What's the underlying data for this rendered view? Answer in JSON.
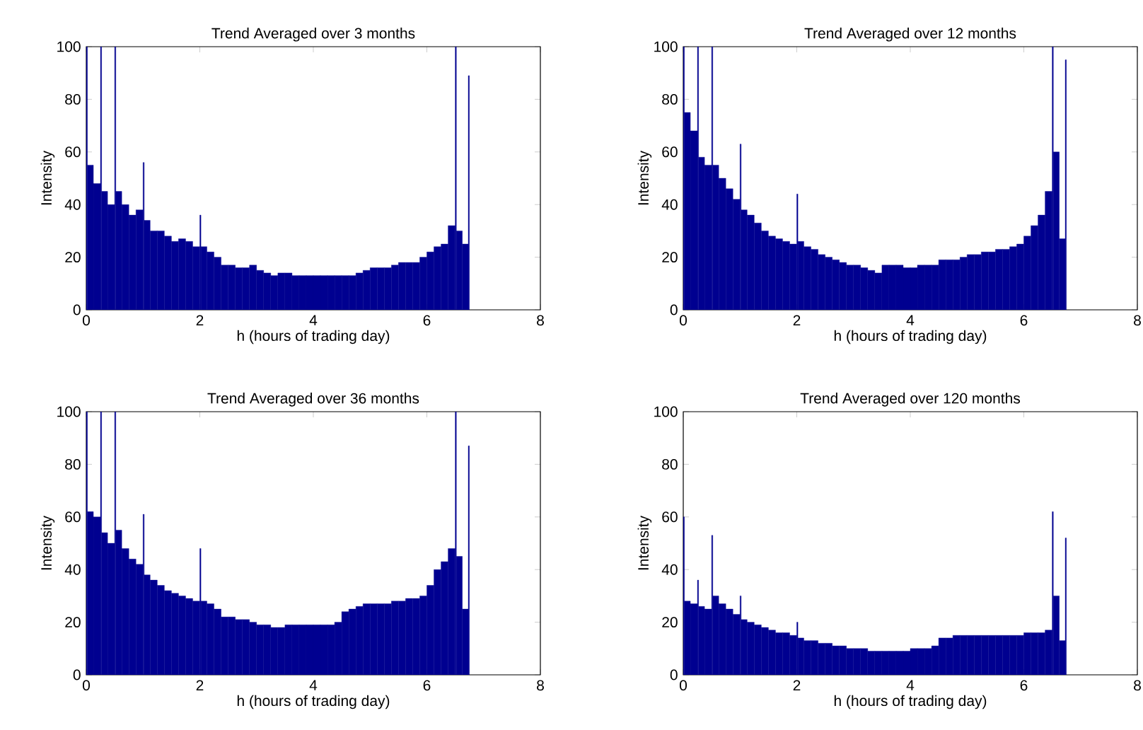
{
  "chart_data": [
    {
      "type": "histogram",
      "title": "Trend Averaged over 3 months",
      "xlabel": "h (hours of trading day)",
      "ylabel": "Intensity",
      "color": "#000090",
      "xlim": [
        0,
        8
      ],
      "ylim": [
        0,
        100
      ],
      "xticks": [
        0,
        2,
        4,
        6,
        8
      ],
      "yticks": [
        0,
        20,
        40,
        60,
        80,
        100
      ],
      "bins": [
        0,
        0.02,
        0.125,
        0.25,
        0.27,
        0.375,
        0.5,
        0.52,
        0.625,
        0.75,
        0.875,
        1,
        1.02,
        1.125,
        1.25,
        1.375,
        1.5,
        1.625,
        1.75,
        1.875,
        2,
        2.02,
        2.125,
        2.25,
        2.375,
        2.5,
        2.625,
        2.75,
        2.875,
        3,
        3.125,
        3.25,
        3.375,
        3.5,
        3.625,
        3.75,
        3.875,
        4,
        4.125,
        4.25,
        4.375,
        4.5,
        4.625,
        4.75,
        4.875,
        5,
        5.125,
        5.25,
        5.375,
        5.5,
        5.625,
        5.75,
        5.875,
        6,
        6.125,
        6.25,
        6.375,
        6.5,
        6.52,
        6.625,
        6.73,
        6.75
      ],
      "values": [
        100,
        55,
        48,
        100,
        45,
        40,
        100,
        45,
        40,
        36,
        38,
        56,
        34,
        30,
        30,
        28,
        26,
        27,
        26,
        24,
        36,
        24,
        22,
        20,
        17,
        17,
        16,
        16,
        17,
        15,
        14,
        13,
        14,
        14,
        13,
        13,
        13,
        13,
        13,
        13,
        13,
        13,
        13,
        14,
        15,
        16,
        16,
        16,
        17,
        18,
        18,
        18,
        20,
        22,
        24,
        25,
        32,
        100,
        30,
        25,
        89
      ]
    },
    {
      "type": "histogram",
      "title": "Trend Averaged over 12 months",
      "xlabel": "h (hours of trading day)",
      "ylabel": "Intensity",
      "color": "#000090",
      "xlim": [
        0,
        8
      ],
      "ylim": [
        0,
        100
      ],
      "xticks": [
        0,
        2,
        4,
        6,
        8
      ],
      "yticks": [
        0,
        20,
        40,
        60,
        80,
        100
      ],
      "bins": [
        0,
        0.02,
        0.125,
        0.25,
        0.27,
        0.375,
        0.5,
        0.52,
        0.625,
        0.75,
        0.875,
        1,
        1.02,
        1.125,
        1.25,
        1.375,
        1.5,
        1.625,
        1.75,
        1.875,
        2,
        2.02,
        2.125,
        2.25,
        2.375,
        2.5,
        2.625,
        2.75,
        2.875,
        3,
        3.125,
        3.25,
        3.375,
        3.5,
        3.625,
        3.75,
        3.875,
        4,
        4.125,
        4.25,
        4.375,
        4.5,
        4.625,
        4.75,
        4.875,
        5,
        5.125,
        5.25,
        5.375,
        5.5,
        5.625,
        5.75,
        5.875,
        6,
        6.125,
        6.25,
        6.375,
        6.5,
        6.52,
        6.625,
        6.73,
        6.75
      ],
      "values": [
        100,
        75,
        68,
        100,
        58,
        55,
        100,
        55,
        50,
        46,
        42,
        63,
        38,
        36,
        33,
        30,
        28,
        27,
        26,
        25,
        44,
        26,
        24,
        23,
        21,
        20,
        19,
        18,
        17,
        17,
        16,
        15,
        14,
        17,
        17,
        17,
        16,
        16,
        17,
        17,
        17,
        19,
        19,
        19,
        20,
        21,
        21,
        22,
        22,
        23,
        23,
        24,
        25,
        28,
        32,
        36,
        45,
        100,
        60,
        27,
        95
      ]
    },
    {
      "type": "histogram",
      "title": "Trend Averaged over 36 months",
      "xlabel": "h (hours of trading day)",
      "ylabel": "Intensity",
      "color": "#000090",
      "xlim": [
        0,
        8
      ],
      "ylim": [
        0,
        100
      ],
      "xticks": [
        0,
        2,
        4,
        6,
        8
      ],
      "yticks": [
        0,
        20,
        40,
        60,
        80,
        100
      ],
      "bins": [
        0,
        0.02,
        0.125,
        0.25,
        0.27,
        0.375,
        0.5,
        0.52,
        0.625,
        0.75,
        0.875,
        1,
        1.02,
        1.125,
        1.25,
        1.375,
        1.5,
        1.625,
        1.75,
        1.875,
        2,
        2.02,
        2.125,
        2.25,
        2.375,
        2.5,
        2.625,
        2.75,
        2.875,
        3,
        3.125,
        3.25,
        3.375,
        3.5,
        3.625,
        3.75,
        3.875,
        4,
        4.125,
        4.25,
        4.375,
        4.5,
        4.625,
        4.75,
        4.875,
        5,
        5.125,
        5.25,
        5.375,
        5.5,
        5.625,
        5.75,
        5.875,
        6,
        6.125,
        6.25,
        6.375,
        6.5,
        6.52,
        6.625,
        6.73,
        6.75
      ],
      "values": [
        100,
        62,
        60,
        100,
        54,
        50,
        100,
        55,
        48,
        44,
        42,
        61,
        38,
        36,
        34,
        32,
        31,
        30,
        29,
        28,
        48,
        28,
        27,
        25,
        22,
        22,
        21,
        21,
        20,
        19,
        19,
        18,
        18,
        19,
        19,
        19,
        19,
        19,
        19,
        19,
        20,
        24,
        25,
        26,
        27,
        27,
        27,
        27,
        28,
        28,
        29,
        29,
        30,
        34,
        40,
        43,
        48,
        100,
        45,
        25,
        87
      ]
    },
    {
      "type": "histogram",
      "title": "Trend Averaged over 120 months",
      "xlabel": "h (hours of trading day)",
      "ylabel": "Intensity",
      "color": "#000090",
      "xlim": [
        0,
        8
      ],
      "ylim": [
        0,
        100
      ],
      "xticks": [
        0,
        2,
        4,
        6,
        8
      ],
      "yticks": [
        0,
        20,
        40,
        60,
        80,
        100
      ],
      "bins": [
        0,
        0.02,
        0.125,
        0.25,
        0.27,
        0.375,
        0.5,
        0.52,
        0.625,
        0.75,
        0.875,
        1,
        1.02,
        1.125,
        1.25,
        1.375,
        1.5,
        1.625,
        1.75,
        1.875,
        2,
        2.02,
        2.125,
        2.25,
        2.375,
        2.5,
        2.625,
        2.75,
        2.875,
        3,
        3.125,
        3.25,
        3.375,
        3.5,
        3.625,
        3.75,
        3.875,
        4,
        4.125,
        4.25,
        4.375,
        4.5,
        4.625,
        4.75,
        4.875,
        5,
        5.125,
        5.25,
        5.375,
        5.5,
        5.625,
        5.75,
        5.875,
        6,
        6.125,
        6.25,
        6.375,
        6.5,
        6.52,
        6.625,
        6.73,
        6.75
      ],
      "values": [
        60,
        28,
        27,
        36,
        26,
        25,
        53,
        30,
        27,
        25,
        23,
        30,
        21,
        20,
        19,
        18,
        17,
        16,
        16,
        15,
        20,
        14,
        13,
        13,
        12,
        12,
        11,
        11,
        10,
        10,
        10,
        9,
        9,
        9,
        9,
        9,
        9,
        10,
        10,
        10,
        11,
        14,
        14,
        15,
        15,
        15,
        15,
        15,
        15,
        15,
        15,
        15,
        15,
        16,
        16,
        16,
        17,
        62,
        30,
        13,
        52
      ]
    }
  ]
}
